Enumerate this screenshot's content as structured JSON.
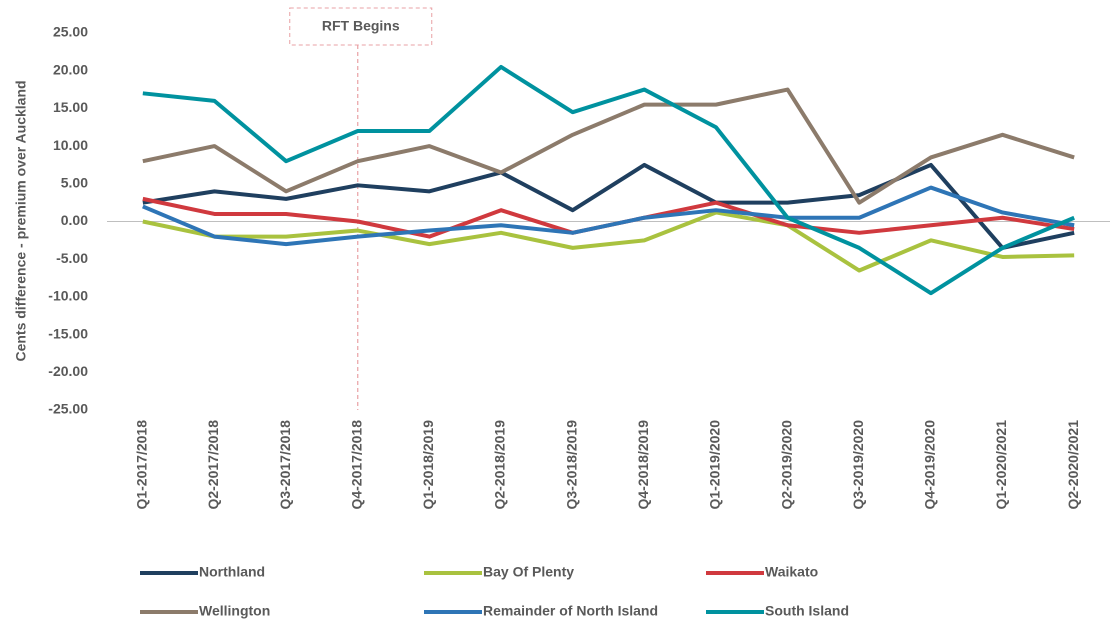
{
  "chart_data": {
    "type": "line",
    "y_label": "Cents difference - premium over Auckland",
    "categories": [
      "Q1-2017/2018",
      "Q2-2017/2018",
      "Q3-2017/2018",
      "Q4-2017/2018",
      "Q1-2018/2019",
      "Q2-2018/2019",
      "Q3-2018/2019",
      "Q4-2018/2019",
      "Q1-2019/2020",
      "Q2-2019/2020",
      "Q3-2019/2020",
      "Q4-2019/2020",
      "Q1-2020/2021",
      "Q2-2020/2021"
    ],
    "series": [
      {
        "name": "Northland",
        "color": "#1f3f5f",
        "values": [
          2.5,
          4,
          3,
          4.8,
          4,
          6.5,
          1.5,
          7.5,
          2.5,
          2.5,
          3.5,
          7.5,
          -3.5,
          -1.5
        ]
      },
      {
        "name": "Bay Of Plenty",
        "color": "#a9c23f",
        "values": [
          0,
          -2,
          -2,
          -1.2,
          -3,
          -1.5,
          -3.5,
          -2.5,
          1.2,
          -0.5,
          -6.5,
          -2.5,
          -4.7,
          -4.5
        ]
      },
      {
        "name": "Waikato",
        "color": "#d0393e",
        "values": [
          3,
          1,
          1,
          0,
          -2,
          1.5,
          -1.5,
          0.5,
          2.5,
          -0.5,
          -1.5,
          -0.5,
          0.5,
          -1
        ]
      },
      {
        "name": "Wellington",
        "color": "#8c7b6b",
        "values": [
          8,
          10,
          4,
          8,
          10,
          6.5,
          11.5,
          15.5,
          15.5,
          17.5,
          2.5,
          8.5,
          11.5,
          8.5
        ]
      },
      {
        "name": "Remainder of North Island",
        "color": "#2e75b6",
        "values": [
          2,
          -2,
          -3,
          -2,
          -1.2,
          -0.5,
          -1.5,
          0.5,
          1.5,
          0.5,
          0.5,
          4.5,
          1.2,
          -0.5
        ]
      },
      {
        "name": "South Island",
        "color": "#00929f",
        "values": [
          17,
          16,
          8,
          12,
          12,
          20.5,
          14.5,
          17.5,
          12.5,
          0.5,
          -3.5,
          -9.5,
          -3.5,
          0.5
        ]
      }
    ],
    "ylim": [
      -25,
      25
    ],
    "yticks": [
      {
        "value": 25,
        "label": "25.00"
      },
      {
        "value": 20,
        "label": "20.00"
      },
      {
        "value": 15,
        "label": "15.00"
      },
      {
        "value": 10,
        "label": "10.00"
      },
      {
        "value": 5,
        "label": "5.00"
      },
      {
        "value": 0,
        "label": "0.00"
      },
      {
        "value": -5,
        "label": "-5.00"
      },
      {
        "value": -10,
        "label": "-10.00"
      },
      {
        "value": -15,
        "label": "-15.00"
      },
      {
        "value": -20,
        "label": "-20.00"
      },
      {
        "value": -25,
        "label": "-25.00"
      }
    ],
    "grid": false,
    "annotations": [
      {
        "text": "RFT Begins",
        "x": "Q4-2017/2018"
      }
    ]
  }
}
